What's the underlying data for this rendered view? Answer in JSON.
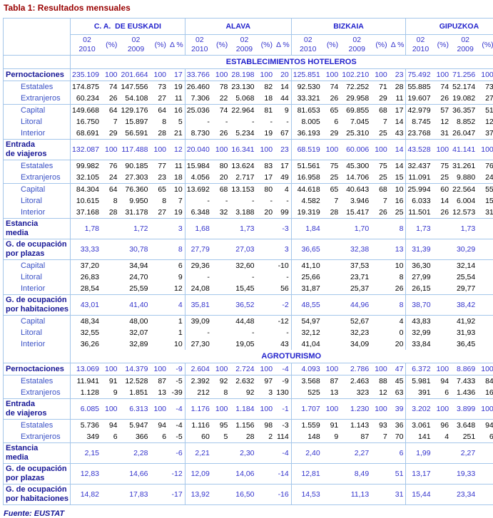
{
  "title": "Tabla 1: Resultados mensuales",
  "footer": "Fuente: EUSTAT",
  "colors": {
    "title": "#990000",
    "blue_text": "#3333cc",
    "header_blue": "#2222cc",
    "dark_label": "#171796",
    "border": "#a4c6ea"
  },
  "table": {
    "groups": [
      "C. A.  DE EUSKADI",
      "ALAVA",
      "BIZKAIA",
      "GIPUZKOA"
    ],
    "columns": [
      "02\n2010",
      "(%)",
      "02\n2009",
      "(%)",
      "Δ %"
    ],
    "sections": [
      {
        "label": "ESTABLECIMIENTOS HOTELEROS",
        "rows": [
          {
            "label": "Pernoctaciones",
            "style": "main",
            "cells": [
              "235.109",
              "100",
              "201.664",
              "100",
              "17",
              "33.766",
              "100",
              "28.198",
              "100",
              "20",
              "125.851",
              "100",
              "102.210",
              "100",
              "23",
              "75.492",
              "100",
              "71.256",
              "100",
              "6"
            ]
          },
          {
            "label": "Estatales",
            "style": "sub",
            "cells": [
              "174.875",
              "74",
              "147.556",
              "73",
              "19",
              "26.460",
              "78",
              "23.130",
              "82",
              "14",
              "92.530",
              "74",
              "72.252",
              "71",
              "28",
              "55.885",
              "74",
              "52.174",
              "73",
              "7"
            ]
          },
          {
            "label": "Extranjeros",
            "style": "sub",
            "cells": [
              "60.234",
              "26",
              "54.108",
              "27",
              "11",
              "7.306",
              "22",
              "5.068",
              "18",
              "44",
              "33.321",
              "26",
              "29.958",
              "29",
              "11",
              "19.607",
              "26",
              "19.082",
              "27",
              "3"
            ]
          },
          {
            "label": "Capital",
            "style": "sub",
            "sep": true,
            "cells": [
              "149.668",
              "64",
              "129.176",
              "64",
              "16",
              "25.036",
              "74",
              "22.964",
              "81",
              "9",
              "81.653",
              "65",
              "69.855",
              "68",
              "17",
              "42.979",
              "57",
              "36.357",
              "51",
              "18"
            ]
          },
          {
            "label": "Litoral",
            "style": "sub",
            "cells": [
              "16.750",
              "7",
              "15.897",
              "8",
              "5",
              "-",
              "-",
              "-",
              "-",
              "-",
              "8.005",
              "6",
              "7.045",
              "7",
              "14",
              "8.745",
              "12",
              "8.852",
              "12",
              "-1"
            ]
          },
          {
            "label": "Interior",
            "style": "sub",
            "cells": [
              "68.691",
              "29",
              "56.591",
              "28",
              "21",
              "8.730",
              "26",
              "5.234",
              "19",
              "67",
              "36.193",
              "29",
              "25.310",
              "25",
              "43",
              "23.768",
              "31",
              "26.047",
              "37",
              "-9"
            ]
          },
          {
            "label": "Entrada\nde viajeros",
            "style": "main",
            "cells": [
              "132.087",
              "100",
              "117.488",
              "100",
              "12",
              "20.040",
              "100",
              "16.341",
              "100",
              "23",
              "68.519",
              "100",
              "60.006",
              "100",
              "14",
              "43.528",
              "100",
              "41.141",
              "100",
              "6"
            ]
          },
          {
            "label": "Estatales",
            "style": "sub",
            "cells": [
              "99.982",
              "76",
              "90.185",
              "77",
              "11",
              "15.984",
              "80",
              "13.624",
              "83",
              "17",
              "51.561",
              "75",
              "45.300",
              "75",
              "14",
              "32.437",
              "75",
              "31.261",
              "76",
              "4"
            ]
          },
          {
            "label": "Extranjeros",
            "style": "sub",
            "cells": [
              "32.105",
              "24",
              "27.303",
              "23",
              "18",
              "4.056",
              "20",
              "2.717",
              "17",
              "49",
              "16.958",
              "25",
              "14.706",
              "25",
              "15",
              "11.091",
              "25",
              "9.880",
              "24",
              "12"
            ]
          },
          {
            "label": "Capital",
            "style": "sub",
            "sep": true,
            "cells": [
              "84.304",
              "64",
              "76.360",
              "65",
              "10",
              "13.692",
              "68",
              "13.153",
              "80",
              "4",
              "44.618",
              "65",
              "40.643",
              "68",
              "10",
              "25.994",
              "60",
              "22.564",
              "55",
              "15"
            ]
          },
          {
            "label": "Litoral",
            "style": "sub",
            "cells": [
              "10.615",
              "8",
              "9.950",
              "8",
              "7",
              "-",
              "-",
              "-",
              "-",
              "-",
              "4.582",
              "7",
              "3.946",
              "7",
              "16",
              "6.033",
              "14",
              "6.004",
              "15",
              "0"
            ]
          },
          {
            "label": "Interior",
            "style": "sub",
            "cells": [
              "37.168",
              "28",
              "31.178",
              "27",
              "19",
              "6.348",
              "32",
              "3.188",
              "20",
              "99",
              "19.319",
              "28",
              "15.417",
              "26",
              "25",
              "11.501",
              "26",
              "12.573",
              "31",
              "-9"
            ]
          },
          {
            "label": "Estancia\nmedia",
            "style": "main",
            "cells": [
              "1,78",
              "",
              "1,72",
              "",
              "3",
              "1,68",
              "",
              "1,73",
              "",
              "-3",
              "1,84",
              "",
              "1,70",
              "",
              "8",
              "1,73",
              "",
              "1,73",
              "",
              "0"
            ]
          },
          {
            "label": "G. de ocupación\npor plazas",
            "style": "main",
            "cells": [
              "33,33",
              "",
              "30,78",
              "",
              "8",
              "27,79",
              "",
              "27,03",
              "",
              "3",
              "36,65",
              "",
              "32,38",
              "",
              "13",
              "31,39",
              "",
              "30,29",
              "",
              "4"
            ]
          },
          {
            "label": "Capital",
            "style": "sub",
            "cells": [
              "37,20",
              "",
              "34,94",
              "",
              "6",
              "29,36",
              "",
              "32,60",
              "",
              "-10",
              "41,10",
              "",
              "37,53",
              "",
              "10",
              "36,30",
              "",
              "32,14",
              "",
              "13"
            ]
          },
          {
            "label": "Litoral",
            "style": "sub",
            "cells": [
              "26,83",
              "",
              "24,70",
              "",
              "9",
              "-",
              "",
              "-",
              "",
              "-",
              "25,66",
              "",
              "23,71",
              "",
              "8",
              "27,99",
              "",
              "25,54",
              "",
              "10"
            ]
          },
          {
            "label": "Interior",
            "style": "sub",
            "cells": [
              "28,54",
              "",
              "25,59",
              "",
              "12",
              "24,08",
              "",
              "15,45",
              "",
              "56",
              "31,87",
              "",
              "25,37",
              "",
              "26",
              "26,15",
              "",
              "29,77",
              "",
              "-12"
            ]
          },
          {
            "label": "G. de ocupación\npor habitaciones",
            "style": "main",
            "cells": [
              "43,01",
              "",
              "41,40",
              "",
              "4",
              "35,81",
              "",
              "36,52",
              "",
              "-2",
              "48,55",
              "",
              "44,96",
              "",
              "8",
              "38,70",
              "",
              "38,42",
              "",
              "1"
            ]
          },
          {
            "label": "Capital",
            "style": "sub",
            "cells": [
              "48,34",
              "",
              "48,00",
              "",
              "1",
              "39,09",
              "",
              "44,48",
              "",
              "-12",
              "54,97",
              "",
              "52,67",
              "",
              "4",
              "43,83",
              "",
              "41,92",
              "",
              "5"
            ]
          },
          {
            "label": "Litoral",
            "style": "sub",
            "cells": [
              "32,55",
              "",
              "32,07",
              "",
              "1",
              "-",
              "",
              "-",
              "",
              "-",
              "32,12",
              "",
              "32,23",
              "",
              "0",
              "32,99",
              "",
              "31,93",
              "",
              "3"
            ]
          },
          {
            "label": "Interior",
            "style": "sub",
            "cells": [
              "36,26",
              "",
              "32,89",
              "",
              "10",
              "27,30",
              "",
              "19,05",
              "",
              "43",
              "41,04",
              "",
              "34,09",
              "",
              "20",
              "33,84",
              "",
              "36,45",
              "",
              "-7"
            ]
          }
        ]
      },
      {
        "label": "AGROTURISMO",
        "rows": [
          {
            "label": "Pernoctaciones",
            "style": "main",
            "cells": [
              "13.069",
              "100",
              "14.379",
              "100",
              "-9",
              "2.604",
              "100",
              "2.724",
              "100",
              "-4",
              "4.093",
              "100",
              "2.786",
              "100",
              "47",
              "6.372",
              "100",
              "8.869",
              "100",
              "-28"
            ]
          },
          {
            "label": "Estatales",
            "style": "sub",
            "cells": [
              "11.941",
              "91",
              "12.528",
              "87",
              "-5",
              "2.392",
              "92",
              "2.632",
              "97",
              "-9",
              "3.568",
              "87",
              "2.463",
              "88",
              "45",
              "5.981",
              "94",
              "7.433",
              "84",
              "-20"
            ]
          },
          {
            "label": "Extranjeros",
            "style": "sub",
            "cells": [
              "1.128",
              "9",
              "1.851",
              "13",
              "-39",
              "212",
              "8",
              "92",
              "3",
              "130",
              "525",
              "13",
              "323",
              "12",
              "63",
              "391",
              "6",
              "1.436",
              "16",
              "-73"
            ]
          },
          {
            "label": "Entrada\nde viajeros",
            "style": "main",
            "cells": [
              "6.085",
              "100",
              "6.313",
              "100",
              "-4",
              "1.176",
              "100",
              "1.184",
              "100",
              "-1",
              "1.707",
              "100",
              "1.230",
              "100",
              "39",
              "3.202",
              "100",
              "3.899",
              "100",
              "-18"
            ]
          },
          {
            "label": "Estatales",
            "style": "sub",
            "cells": [
              "5.736",
              "94",
              "5.947",
              "94",
              "-4",
              "1.116",
              "95",
              "1.156",
              "98",
              "-3",
              "1.559",
              "91",
              "1.143",
              "93",
              "36",
              "3.061",
              "96",
              "3.648",
              "94",
              "-16"
            ]
          },
          {
            "label": "Extranjeros",
            "style": "sub",
            "cells": [
              "349",
              "6",
              "366",
              "6",
              "-5",
              "60",
              "5",
              "28",
              "2",
              "114",
              "148",
              "9",
              "87",
              "7",
              "70",
              "141",
              "4",
              "251",
              "6",
              "-44"
            ]
          },
          {
            "label": "Estancia\nmedia",
            "style": "main",
            "cells": [
              "2,15",
              "",
              "2,28",
              "",
              "-6",
              "2,21",
              "",
              "2,30",
              "",
              "-4",
              "2,40",
              "",
              "2,27",
              "",
              "6",
              "1,99",
              "",
              "2,27",
              "",
              "-12"
            ]
          },
          {
            "label": "G. de ocupación\npor plazas",
            "style": "main",
            "cells": [
              "12,83",
              "",
              "14,66",
              "",
              "-12",
              "12,09",
              "",
              "14,06",
              "",
              "-14",
              "12,81",
              "",
              "8,49",
              "",
              "51",
              "13,17",
              "",
              "19,33",
              "",
              "-32"
            ]
          },
          {
            "label": "G. de ocupación\npor habitaciones",
            "style": "main",
            "cells": [
              "14,82",
              "",
              "17,83",
              "",
              "-17",
              "13,92",
              "",
              "16,50",
              "",
              "-16",
              "14,53",
              "",
              "11,13",
              "",
              "31",
              "15,44",
              "",
              "23,34",
              "",
              "-34"
            ]
          }
        ]
      }
    ]
  }
}
